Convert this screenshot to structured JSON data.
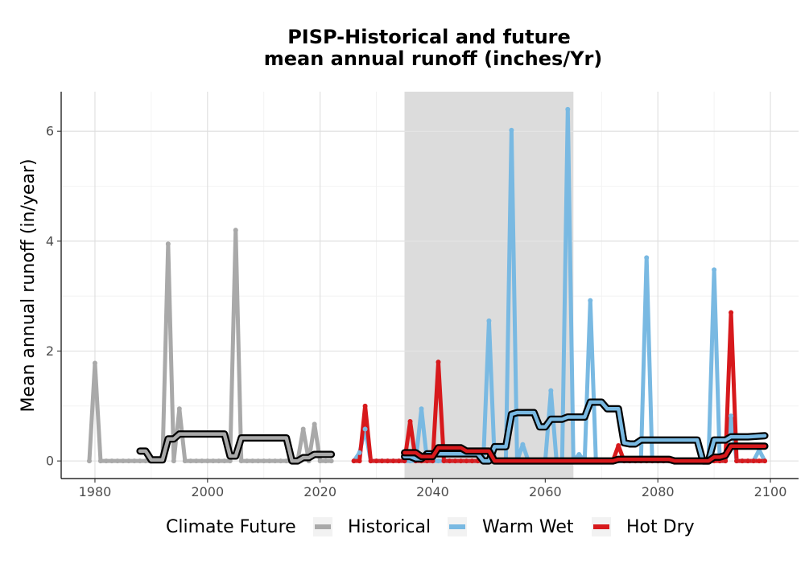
{
  "chart_data": {
    "type": "line",
    "title_line1": "PISP-Historical and future",
    "title_line2": "mean annual runoff (inches/Yr)",
    "xlabel": "",
    "ylabel": "Mean annual runoff (in/year)",
    "xlim": [
      1974,
      2105
    ],
    "ylim": [
      -0.32,
      6.72
    ],
    "x_ticks": [
      1980,
      2000,
      2020,
      2040,
      2060,
      2080,
      2100
    ],
    "y_ticks": [
      0,
      2,
      4,
      6
    ],
    "grid": true,
    "shaded_region": {
      "x_start": 2035,
      "x_end": 2065,
      "color": "#dcdcdc"
    },
    "legend": {
      "title": "Climate Future",
      "position": "bottom",
      "entries": [
        "Historical",
        "Warm Wet",
        "Hot Dry"
      ]
    },
    "colors": {
      "Historical": "#a9a9a9",
      "Warm Wet": "#79b9e2",
      "Hot Dry": "#d7191c",
      "rolling_mean": "#000000"
    },
    "series": [
      {
        "name": "Historical",
        "x": [
          1979,
          1980,
          1981,
          1982,
          1983,
          1984,
          1985,
          1986,
          1987,
          1988,
          1989,
          1990,
          1991,
          1992,
          1993,
          1994,
          1995,
          1996,
          1997,
          1998,
          1999,
          2000,
          2001,
          2002,
          2003,
          2004,
          2005,
          2006,
          2007,
          2008,
          2009,
          2010,
          2011,
          2012,
          2013,
          2014,
          2015,
          2016,
          2017,
          2018,
          2019,
          2020,
          2021,
          2022
        ],
        "y": [
          0,
          1.78,
          0,
          0,
          0,
          0,
          0,
          0,
          0,
          0,
          0,
          0,
          0,
          0,
          3.95,
          0,
          0.95,
          0,
          0,
          0,
          0,
          0,
          0,
          0,
          0,
          0,
          4.2,
          0,
          0,
          0,
          0,
          0,
          0,
          0,
          0,
          0,
          0,
          0,
          0.58,
          0,
          0.67,
          0,
          0,
          0
        ]
      },
      {
        "name": "Warm Wet",
        "x": [
          2026,
          2027,
          2028,
          2029,
          2030,
          2031,
          2032,
          2033,
          2034,
          2035,
          2036,
          2037,
          2038,
          2039,
          2040,
          2041,
          2042,
          2043,
          2044,
          2045,
          2046,
          2047,
          2048,
          2049,
          2050,
          2051,
          2052,
          2053,
          2054,
          2055,
          2056,
          2057,
          2058,
          2059,
          2060,
          2061,
          2062,
          2063,
          2064,
          2065,
          2066,
          2067,
          2068,
          2069,
          2070,
          2071,
          2072,
          2073,
          2074,
          2075,
          2076,
          2077,
          2078,
          2079,
          2080,
          2081,
          2082,
          2083,
          2084,
          2085,
          2086,
          2087,
          2088,
          2089,
          2090,
          2091,
          2092,
          2093,
          2094,
          2095,
          2096,
          2097,
          2098,
          2099
        ],
        "y": [
          0,
          0.15,
          0.58,
          0,
          0,
          0,
          0,
          0,
          0,
          0,
          0,
          0,
          0.95,
          0,
          0,
          0,
          0,
          0,
          0,
          0,
          0,
          0,
          0,
          0,
          2.55,
          0,
          0,
          0,
          6.02,
          0,
          0.3,
          0,
          0,
          0,
          0,
          1.28,
          0,
          0,
          6.4,
          0,
          0.12,
          0,
          2.92,
          0,
          0,
          0,
          0,
          0,
          0,
          0,
          0,
          0,
          3.7,
          0,
          0,
          0,
          0,
          0,
          0,
          0,
          0,
          0,
          0,
          0,
          3.48,
          0,
          0,
          0.82,
          0,
          0,
          0,
          0,
          0.2,
          0
        ]
      },
      {
        "name": "Hot Dry",
        "x": [
          2026,
          2027,
          2028,
          2029,
          2030,
          2031,
          2032,
          2033,
          2034,
          2035,
          2036,
          2037,
          2038,
          2039,
          2040,
          2041,
          2042,
          2043,
          2044,
          2045,
          2046,
          2047,
          2048,
          2049,
          2050,
          2051,
          2052,
          2053,
          2054,
          2055,
          2056,
          2057,
          2058,
          2059,
          2060,
          2061,
          2062,
          2063,
          2064,
          2065,
          2066,
          2067,
          2068,
          2069,
          2070,
          2071,
          2072,
          2073,
          2074,
          2075,
          2076,
          2077,
          2078,
          2079,
          2080,
          2081,
          2082,
          2083,
          2084,
          2085,
          2086,
          2087,
          2088,
          2089,
          2090,
          2091,
          2092,
          2093,
          2094,
          2095,
          2096,
          2097,
          2098,
          2099
        ],
        "y": [
          0,
          0,
          1.0,
          0,
          0,
          0,
          0,
          0,
          0,
          0,
          0.72,
          0,
          0,
          0,
          0,
          1.8,
          0,
          0,
          0,
          0,
          0,
          0,
          0,
          0,
          0,
          0,
          0,
          0,
          0,
          0,
          0,
          0,
          0,
          0,
          0,
          0,
          0,
          0,
          0,
          0,
          0,
          0,
          0,
          0,
          0,
          0,
          0,
          0.28,
          0,
          0,
          0,
          0,
          0,
          0,
          0,
          0,
          0,
          0,
          0,
          0,
          0,
          0,
          0,
          0,
          0,
          0,
          0,
          2.7,
          0,
          0,
          0,
          0,
          0,
          0
        ]
      }
    ],
    "rolling_means": [
      {
        "series": "Historical",
        "x": [
          1988,
          1989,
          1990,
          1991,
          1992,
          1993,
          1994,
          1995,
          1996,
          2000,
          2003,
          2004,
          2005,
          2006,
          2010,
          2014,
          2015,
          2016,
          2017,
          2018,
          2019,
          2020,
          2022
        ],
        "y": [
          0.18,
          0.18,
          0.02,
          0.02,
          0.02,
          0.4,
          0.4,
          0.49,
          0.49,
          0.49,
          0.49,
          0.09,
          0.09,
          0.42,
          0.42,
          0.42,
          0.0,
          0.0,
          0.06,
          0.06,
          0.12,
          0.12,
          0.12
        ]
      },
      {
        "series": "Warm Wet",
        "x": [
          2035,
          2036,
          2037,
          2038,
          2039,
          2040,
          2045,
          2048,
          2049,
          2050,
          2051,
          2052,
          2053,
          2054,
          2055,
          2058,
          2059,
          2060,
          2061,
          2062,
          2063,
          2064,
          2065,
          2066,
          2067,
          2068,
          2069,
          2070,
          2071,
          2072,
          2073,
          2074,
          2075,
          2076,
          2077,
          2084,
          2087,
          2088,
          2089,
          2090,
          2091,
          2092,
          2093,
          2096,
          2099
        ],
        "y": [
          0.08,
          0.08,
          0.04,
          0.04,
          0.13,
          0.13,
          0.13,
          0.13,
          0.0,
          0.0,
          0.26,
          0.26,
          0.26,
          0.85,
          0.88,
          0.88,
          0.62,
          0.62,
          0.76,
          0.76,
          0.76,
          0.8,
          0.8,
          0.8,
          0.8,
          1.07,
          1.07,
          1.07,
          0.95,
          0.95,
          0.95,
          0.33,
          0.31,
          0.31,
          0.38,
          0.38,
          0.38,
          0.0,
          0.0,
          0.38,
          0.38,
          0.38,
          0.44,
          0.44,
          0.46
        ]
      },
      {
        "series": "Hot Dry",
        "x": [
          2035,
          2036,
          2037,
          2038,
          2039,
          2040,
          2041,
          2042,
          2045,
          2046,
          2049,
          2050,
          2051,
          2052,
          2060,
          2072,
          2073,
          2082,
          2083,
          2088,
          2089,
          2090,
          2091,
          2092,
          2093,
          2099
        ],
        "y": [
          0.15,
          0.15,
          0.15,
          0.08,
          0.08,
          0.08,
          0.24,
          0.24,
          0.24,
          0.18,
          0.18,
          0.18,
          0.0,
          0.0,
          0.0,
          0.0,
          0.03,
          0.03,
          0.0,
          0.0,
          0.0,
          0.07,
          0.07,
          0.1,
          0.27,
          0.27
        ]
      }
    ]
  }
}
